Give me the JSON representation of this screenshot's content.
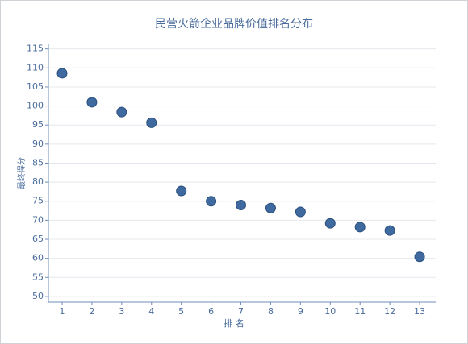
{
  "chart_data": {
    "type": "scatter",
    "title": "民营火箭企业品牌价值排名分布",
    "x_label": "排 名",
    "y_label": "最终得分",
    "x": [
      1,
      2,
      3,
      4,
      5,
      6,
      7,
      8,
      9,
      10,
      11,
      12,
      13
    ],
    "values": [
      108.6,
      101.0,
      98.4,
      95.6,
      77.7,
      75.0,
      74.0,
      73.2,
      72.2,
      69.2,
      68.2,
      67.3,
      60.4
    ],
    "color": "#3f6a9f",
    "xlim": [
      0.54,
      13.54
    ],
    "xticks": [
      1,
      2,
      3,
      4,
      5,
      6,
      7,
      8,
      9,
      10,
      11,
      12,
      13
    ],
    "ylim": [
      48.5,
      116.2
    ],
    "yticks": [
      50,
      55,
      60,
      65,
      70,
      75,
      80,
      85,
      90,
      95,
      100,
      105,
      110,
      115
    ],
    "grid": true
  }
}
